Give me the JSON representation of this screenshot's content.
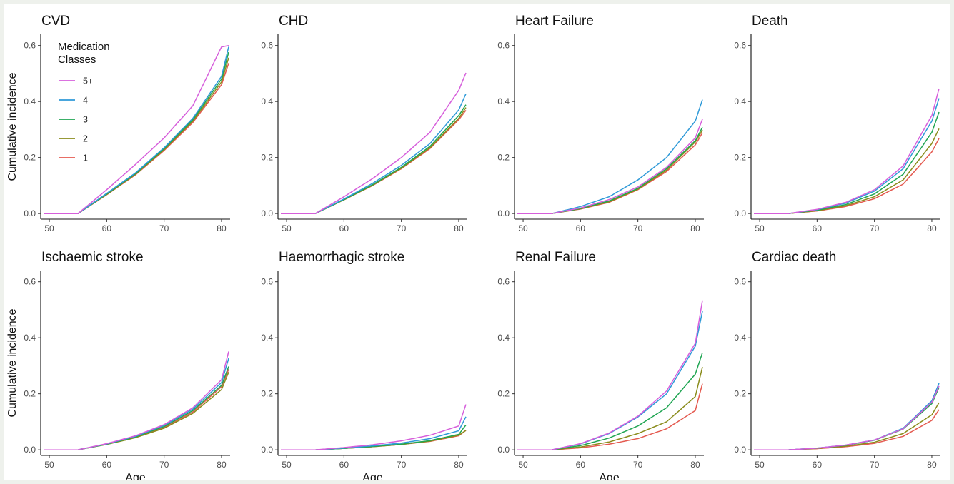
{
  "chart_data": {
    "type": "line",
    "xlabel": "Age",
    "ylabel": "Cumulative incidence",
    "xlim": [
      48.5,
      81.5
    ],
    "ylim": [
      -0.02,
      0.64
    ],
    "x_ticks": [
      50,
      60,
      70,
      80
    ],
    "y_ticks": [
      0.0,
      0.2,
      0.4,
      0.6
    ],
    "x_tick_labels": [
      "50",
      "60",
      "70",
      "80"
    ],
    "y_tick_labels": [
      "0.0",
      "0.2",
      "0.4",
      "0.6"
    ],
    "grid": false,
    "legend": {
      "title": "Medication Classes",
      "title_lines": [
        "Medication",
        "Classes"
      ],
      "placement": "top-left",
      "entries": [
        "5+",
        "4",
        "3",
        "2",
        "1"
      ]
    },
    "series_colors": {
      "5+": "#d65edb",
      "4": "#2f9ad8",
      "3": "#1fa552",
      "2": "#8a8c1c",
      "1": "#e4594f"
    },
    "x": [
      49,
      55,
      60,
      65,
      70,
      75,
      80,
      81.3
    ],
    "panels": [
      {
        "title": "CVD",
        "series": [
          {
            "name": "5+",
            "values": [
              0,
              0,
              0.085,
              0.175,
              0.27,
              0.385,
              0.595,
              0.6
            ]
          },
          {
            "name": "4",
            "values": [
              0,
              0,
              0.072,
              0.145,
              0.235,
              0.34,
              0.49,
              0.6
            ]
          },
          {
            "name": "3",
            "values": [
              0,
              0,
              0.07,
              0.142,
              0.232,
              0.335,
              0.48,
              0.58
            ]
          },
          {
            "name": "2",
            "values": [
              0,
              0,
              0.068,
              0.14,
              0.228,
              0.33,
              0.47,
              0.56
            ]
          },
          {
            "name": "1",
            "values": [
              0,
              0,
              0.067,
              0.138,
              0.225,
              0.325,
              0.46,
              0.54
            ]
          }
        ]
      },
      {
        "title": "CHD",
        "series": [
          {
            "name": "5+",
            "values": [
              0,
              0,
              0.06,
              0.125,
              0.2,
              0.29,
              0.44,
              0.505
            ]
          },
          {
            "name": "4",
            "values": [
              0,
              0,
              0.052,
              0.108,
              0.172,
              0.25,
              0.37,
              0.43
            ]
          },
          {
            "name": "3",
            "values": [
              0,
              0,
              0.05,
              0.103,
              0.165,
              0.24,
              0.35,
              0.39
            ]
          },
          {
            "name": "2",
            "values": [
              0,
              0,
              0.049,
              0.101,
              0.162,
              0.235,
              0.34,
              0.38
            ]
          },
          {
            "name": "1",
            "values": [
              0,
              0,
              0.049,
              0.1,
              0.16,
              0.232,
              0.335,
              0.37
            ]
          }
        ]
      },
      {
        "title": "Heart Failure",
        "series": [
          {
            "name": "5+",
            "values": [
              0,
              0,
              0.02,
              0.05,
              0.095,
              0.165,
              0.27,
              0.34
            ]
          },
          {
            "name": "4",
            "values": [
              0,
              0,
              0.025,
              0.06,
              0.12,
              0.2,
              0.33,
              0.41
            ]
          },
          {
            "name": "3",
            "values": [
              0,
              0,
              0.018,
              0.045,
              0.09,
              0.16,
              0.26,
              0.31
            ]
          },
          {
            "name": "2",
            "values": [
              0,
              0,
              0.017,
              0.042,
              0.087,
              0.155,
              0.255,
              0.3
            ]
          },
          {
            "name": "1",
            "values": [
              0,
              0,
              0.016,
              0.04,
              0.085,
              0.15,
              0.245,
              0.29
            ]
          }
        ]
      },
      {
        "title": "Death",
        "series": [
          {
            "name": "5+",
            "values": [
              0,
              0,
              0.015,
              0.04,
              0.085,
              0.17,
              0.35,
              0.45
            ]
          },
          {
            "name": "4",
            "values": [
              0,
              0,
              0.014,
              0.037,
              0.08,
              0.16,
              0.33,
              0.415
            ]
          },
          {
            "name": "3",
            "values": [
              0,
              0,
              0.012,
              0.032,
              0.07,
              0.14,
              0.29,
              0.365
            ]
          },
          {
            "name": "2",
            "values": [
              0,
              0,
              0.01,
              0.028,
              0.06,
              0.12,
              0.25,
              0.305
            ]
          },
          {
            "name": "1",
            "values": [
              0,
              0,
              0.009,
              0.025,
              0.053,
              0.105,
              0.22,
              0.27
            ]
          }
        ]
      },
      {
        "title": "Ischaemic stroke",
        "series": [
          {
            "name": "5+",
            "values": [
              0,
              0,
              0.022,
              0.05,
              0.09,
              0.15,
              0.25,
              0.355
            ]
          },
          {
            "name": "4",
            "values": [
              0,
              0,
              0.021,
              0.048,
              0.087,
              0.145,
              0.24,
              0.33
            ]
          },
          {
            "name": "3",
            "values": [
              0,
              0,
              0.02,
              0.046,
              0.083,
              0.14,
              0.23,
              0.3
            ]
          },
          {
            "name": "2",
            "values": [
              0,
              0,
              0.019,
              0.043,
              0.077,
              0.13,
              0.215,
              0.28
            ]
          },
          {
            "name": "1",
            "values": [
              0,
              0,
              0.02,
              0.045,
              0.08,
              0.135,
              0.225,
              0.29
            ]
          }
        ]
      },
      {
        "title": "Haemorrhagic stroke",
        "series": [
          {
            "name": "5+",
            "values": [
              0,
              0,
              0.008,
              0.018,
              0.032,
              0.052,
              0.085,
              0.165
            ]
          },
          {
            "name": "4",
            "values": [
              0,
              0,
              0.006,
              0.014,
              0.024,
              0.04,
              0.068,
              0.12
            ]
          },
          {
            "name": "3",
            "values": [
              0,
              0,
              0.005,
              0.012,
              0.02,
              0.033,
              0.055,
              0.09
            ]
          },
          {
            "name": "2",
            "values": [
              0,
              0,
              0.005,
              0.011,
              0.019,
              0.031,
              0.052,
              0.07
            ]
          },
          {
            "name": "1",
            "values": [
              0,
              0,
              0.005,
              0.011,
              0.019,
              0.03,
              0.05,
              0.07
            ]
          }
        ]
      },
      {
        "title": "Renal Failure",
        "series": [
          {
            "name": "5+",
            "values": [
              0,
              0,
              0.022,
              0.06,
              0.12,
              0.21,
              0.38,
              0.54
            ]
          },
          {
            "name": "4",
            "values": [
              0,
              0,
              0.021,
              0.058,
              0.117,
              0.2,
              0.37,
              0.5
            ]
          },
          {
            "name": "3",
            "values": [
              0,
              0,
              0.015,
              0.042,
              0.085,
              0.15,
              0.27,
              0.35
            ]
          },
          {
            "name": "2",
            "values": [
              0,
              0,
              0.01,
              0.028,
              0.058,
              0.1,
              0.19,
              0.3
            ]
          },
          {
            "name": "1",
            "values": [
              0,
              0,
              0.007,
              0.02,
              0.04,
              0.075,
              0.14,
              0.24
            ]
          }
        ]
      },
      {
        "title": "Cardiac death",
        "series": [
          {
            "name": "5+",
            "values": [
              0,
              0,
              0.006,
              0.017,
              0.035,
              0.075,
              0.17,
              0.23
            ]
          },
          {
            "name": "4",
            "values": [
              0,
              0,
              0.006,
              0.017,
              0.035,
              0.077,
              0.175,
              0.24
            ]
          },
          {
            "name": "3",
            "values": [
              0,
              0,
              0.006,
              0.016,
              0.034,
              0.074,
              0.165,
              0.225
            ]
          },
          {
            "name": "2",
            "values": [
              0,
              0,
              0.005,
              0.013,
              0.027,
              0.058,
              0.125,
              0.17
            ]
          },
          {
            "name": "1",
            "values": [
              0,
              0,
              0.004,
              0.011,
              0.023,
              0.048,
              0.105,
              0.145
            ]
          }
        ]
      }
    ]
  }
}
